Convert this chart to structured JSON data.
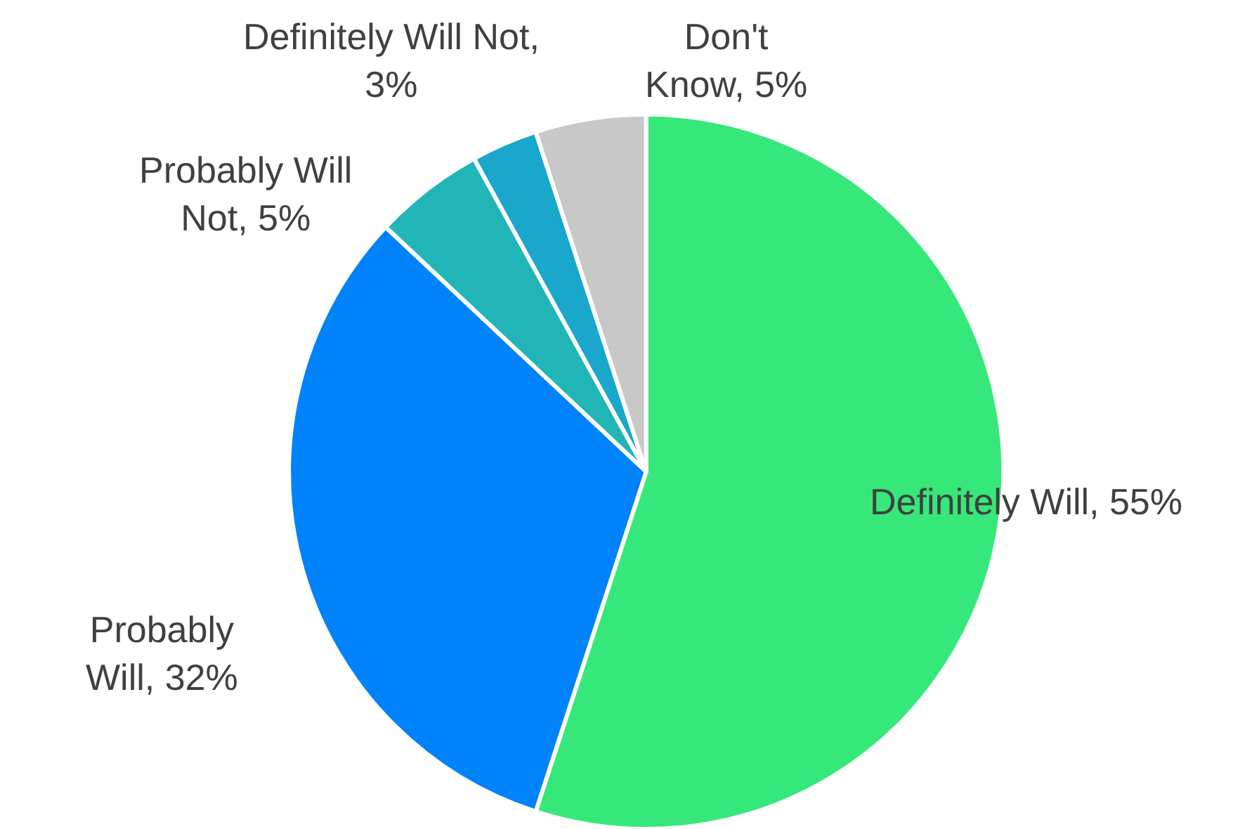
{
  "chart_data": {
    "type": "pie",
    "categories": [
      "Definitely Will, 55%",
      "Probably\nWill, 32%",
      "Probably Will\nNot, 5%",
      "Definitely Will Not,\n3%",
      "Don't\nKnow, 5%"
    ],
    "values": [
      55,
      32,
      5,
      3,
      5
    ],
    "colors": [
      "#36e87a",
      "#0082fb",
      "#22b5b8",
      "#1aa7cc",
      "#c8c8c8"
    ],
    "legend": false
  }
}
